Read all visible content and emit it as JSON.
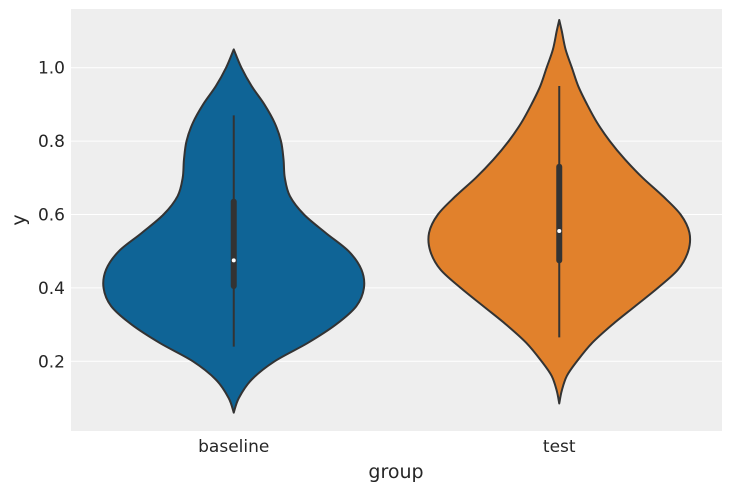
{
  "chart_data": {
    "type": "violin",
    "title": "",
    "xlabel": "group",
    "ylabel": "y",
    "categories": [
      "baseline",
      "test"
    ],
    "colors": [
      "#0f6496",
      "#e1812c"
    ],
    "ylim": [
      0.01,
      1.16
    ],
    "yticks": [
      0.2,
      0.4,
      0.6,
      0.8,
      1.0
    ],
    "ytick_labels": [
      "0.2",
      "0.4",
      "0.6",
      "0.8",
      "1.0"
    ],
    "grid": true,
    "background": "#eeeeee",
    "legend": "none",
    "violins": [
      {
        "name": "baseline",
        "color": "#0f6496",
        "support": [
          0.06,
          1.05
        ],
        "density_profile": [
          [
            0.06,
            0.0
          ],
          [
            0.1,
            0.04
          ],
          [
            0.15,
            0.14
          ],
          [
            0.2,
            0.32
          ],
          [
            0.25,
            0.58
          ],
          [
            0.3,
            0.8
          ],
          [
            0.35,
            0.96
          ],
          [
            0.4,
            1.02
          ],
          [
            0.45,
            1.0
          ],
          [
            0.5,
            0.9
          ],
          [
            0.55,
            0.72
          ],
          [
            0.6,
            0.55
          ],
          [
            0.65,
            0.44
          ],
          [
            0.7,
            0.4
          ],
          [
            0.75,
            0.39
          ],
          [
            0.8,
            0.37
          ],
          [
            0.85,
            0.32
          ],
          [
            0.9,
            0.24
          ],
          [
            0.95,
            0.14
          ],
          [
            1.0,
            0.06
          ],
          [
            1.05,
            0.0
          ]
        ],
        "whisker": [
          0.24,
          0.87
        ],
        "box": [
          0.405,
          0.635
        ],
        "median": 0.475
      },
      {
        "name": "test",
        "color": "#e1812c",
        "support": [
          0.085,
          1.13
        ],
        "density_profile": [
          [
            0.085,
            0.0
          ],
          [
            0.12,
            0.02
          ],
          [
            0.16,
            0.06
          ],
          [
            0.2,
            0.14
          ],
          [
            0.25,
            0.26
          ],
          [
            0.3,
            0.42
          ],
          [
            0.35,
            0.6
          ],
          [
            0.4,
            0.78
          ],
          [
            0.45,
            0.94
          ],
          [
            0.5,
            1.02
          ],
          [
            0.55,
            1.03
          ],
          [
            0.6,
            0.96
          ],
          [
            0.65,
            0.82
          ],
          [
            0.7,
            0.66
          ],
          [
            0.75,
            0.52
          ],
          [
            0.8,
            0.4
          ],
          [
            0.85,
            0.3
          ],
          [
            0.9,
            0.22
          ],
          [
            0.95,
            0.15
          ],
          [
            1.0,
            0.1
          ],
          [
            1.05,
            0.05
          ],
          [
            1.1,
            0.02
          ],
          [
            1.13,
            0.0
          ]
        ],
        "whisker": [
          0.265,
          0.95
        ],
        "box": [
          0.475,
          0.73
        ],
        "median": 0.555
      }
    ]
  }
}
